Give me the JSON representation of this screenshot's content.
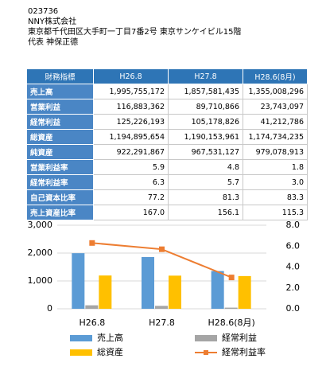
{
  "header": {
    "code": "023736",
    "company": "NNY株式会社",
    "address": "東京都千代田区大手町一丁目7番2号 東京サンケイビル15階",
    "representative": "代表  神保正德"
  },
  "table": {
    "header": [
      "財務指標",
      "H26.8",
      "H27.8",
      "H28.6(8月)"
    ],
    "rows": [
      [
        "売上高",
        "1,995,755,172",
        "1,857,581,435",
        "1,355,008,296"
      ],
      [
        "営業利益",
        "116,883,362",
        "89,710,866",
        "23,743,097"
      ],
      [
        "経常利益",
        "125,226,193",
        "105,178,826",
        "41,212,786"
      ],
      [
        "総資産",
        "1,194,895,654",
        "1,190,153,961",
        "1,174,734,235"
      ],
      [
        "純資産",
        "922,291,867",
        "967,531,127",
        "979,078,913"
      ],
      [
        "営業利益率",
        "5.9",
        "4.8",
        "1.8"
      ],
      [
        "経常利益率",
        "6.3",
        "5.7",
        "3.0"
      ],
      [
        "自己資本比率",
        "77.2",
        "81.3",
        "83.3"
      ],
      [
        "売上資産比率",
        "167.0",
        "156.1",
        "115.3"
      ]
    ]
  },
  "chart_data": {
    "type": "bar",
    "categories": [
      "H26.8",
      "H27.8",
      "H28.6(8月)"
    ],
    "series": [
      {
        "name": "売上高",
        "color": "#5b9bd5",
        "values": [
          1996,
          1858,
          1355
        ]
      },
      {
        "name": "経常利益",
        "color": "#a5a5a5",
        "values": [
          125,
          105,
          41
        ]
      },
      {
        "name": "総資産",
        "color": "#ffc000",
        "values": [
          1195,
          1190,
          1175
        ]
      },
      {
        "name": "経常利益率",
        "color": "#ed7d31",
        "type": "line",
        "axis": "y2",
        "values": [
          6.3,
          5.7,
          3.0
        ]
      }
    ],
    "ylim": [
      0,
      3000
    ],
    "yticks": [
      0,
      {
        "value": 1000,
        "label": "1,000"
      },
      {
        "value": 2000,
        "label": "2,000"
      },
      {
        "value": 3000,
        "label": "3,000"
      }
    ],
    "y2lim": [
      0,
      8
    ],
    "y2ticks": [
      {
        "value": 0,
        "label": "0.0"
      },
      {
        "value": 2,
        "label": "2.0"
      },
      {
        "value": 4,
        "label": "4.0"
      },
      {
        "value": 6,
        "label": "6.0"
      },
      {
        "value": 8,
        "label": "8.0"
      }
    ],
    "grid": true
  }
}
